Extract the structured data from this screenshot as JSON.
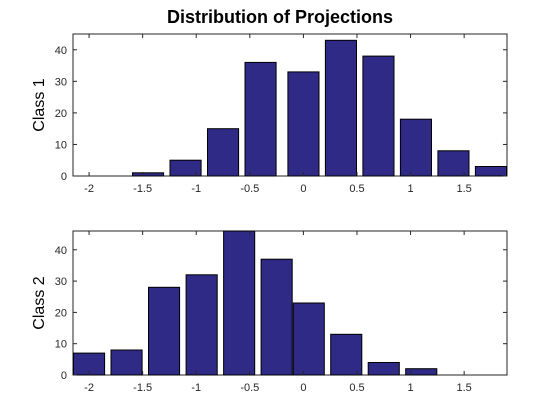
{
  "figure_title": "Distribution of Projections",
  "chart_data": [
    {
      "type": "bar",
      "ylabel": "Class 1",
      "xlim": [
        -2.15,
        1.9
      ],
      "ylim": [
        0,
        45
      ],
      "xticks": [
        -2,
        -1.5,
        -1,
        -0.5,
        0,
        0.5,
        1,
        1.5
      ],
      "xtick_labels": [
        "-2",
        "-1.5",
        "-1",
        "-0.5",
        "0",
        "0.5",
        "1",
        "1.5"
      ],
      "yticks": [
        0,
        10,
        20,
        30,
        40
      ],
      "ytick_labels": [
        "0",
        "10",
        "20",
        "30",
        "40"
      ],
      "bar_width": 0.29,
      "x": [
        -1.8,
        -1.45,
        -1.1,
        -0.75,
        -0.4,
        0.0,
        0.35,
        0.7,
        1.05,
        1.4,
        1.75
      ],
      "values": [
        0,
        1,
        5,
        15,
        36,
        33,
        43,
        38,
        18,
        8,
        3
      ],
      "bar_color": "#2e2a85",
      "grid": false
    },
    {
      "type": "bar",
      "ylabel": "Class 2",
      "xlim": [
        -2.15,
        1.9
      ],
      "ylim": [
        0,
        46
      ],
      "xticks": [
        -2,
        -1.5,
        -1,
        -0.5,
        0,
        0.5,
        1,
        1.5
      ],
      "xtick_labels": [
        "-2",
        "-1.5",
        "-1",
        "-0.5",
        "0",
        "0.5",
        "1",
        "1.5"
      ],
      "yticks": [
        0,
        10,
        20,
        30,
        40
      ],
      "ytick_labels": [
        "0",
        "10",
        "20",
        "30",
        "40"
      ],
      "bar_width": 0.29,
      "x": [
        -2.0,
        -1.65,
        -1.3,
        -0.95,
        -0.6,
        -0.25,
        0.05,
        0.4,
        0.75,
        1.1,
        1.45
      ],
      "values": [
        7,
        8,
        28,
        32,
        46,
        37,
        23,
        13,
        4,
        2,
        0
      ],
      "bar_color": "#2e2a85",
      "grid": false
    }
  ]
}
